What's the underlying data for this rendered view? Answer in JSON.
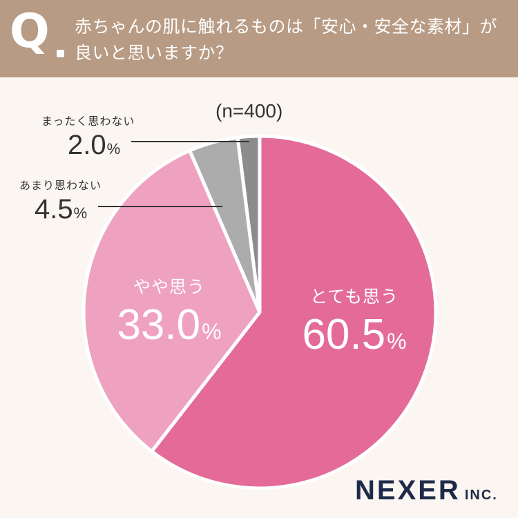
{
  "header": {
    "q_mark": "Q",
    "question": "赤ちゃんの肌に触れるものは「安心・安全な素材」が良いと思いますか？"
  },
  "chart_data": {
    "type": "pie",
    "title": "",
    "sample_size": "(n=400)",
    "unit": "%",
    "start": "12 o'clock",
    "direction": "clockwise",
    "slices": [
      {
        "label": "とても思う",
        "value": 60.5,
        "display": "60.5",
        "color": "#e46b97"
      },
      {
        "label": "やや思う",
        "value": 33.0,
        "display": "33.0",
        "color": "#efa2bf"
      },
      {
        "label": "あまり思わない",
        "value": 4.5,
        "display": "4.5",
        "color": "#acacac"
      },
      {
        "label": "まったく思わない",
        "value": 2.0,
        "display": "2.0",
        "color": "#8c8c8c"
      }
    ]
  },
  "logo": {
    "main": "NEXER",
    "sub": "INC."
  }
}
